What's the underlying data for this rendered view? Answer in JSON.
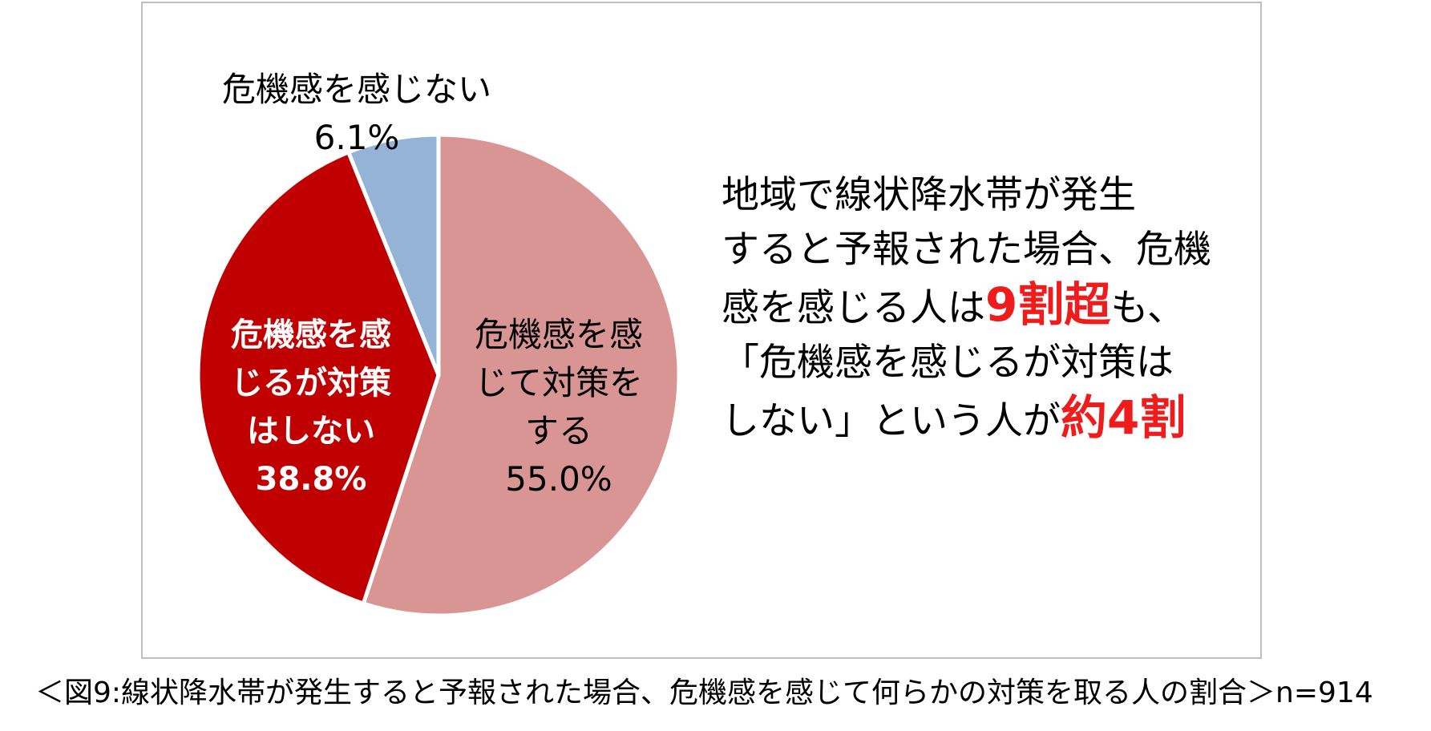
{
  "chart_data": {
    "type": "pie",
    "slices": [
      {
        "label_lines": [
          "危機感を感",
          "じて対策を",
          "する"
        ],
        "value": 55.0,
        "value_text": "55.0%",
        "color": "#d99594"
      },
      {
        "label_lines": [
          "危機感を感",
          "じるが対策",
          "はしない"
        ],
        "value": 38.8,
        "value_text": "38.8%",
        "color": "#c00000"
      },
      {
        "label_lines": [
          "危機感を感じない"
        ],
        "value": 6.1,
        "value_text": "6.1%",
        "color": "#95b3d7"
      }
    ],
    "start_direction": "top",
    "direction": "clockwise"
  },
  "callout": {
    "line1": "地域で線状降水帯が発生",
    "line2": "すると予報された場合、危機",
    "line3_pre": "感を感じる人は",
    "line3_em": "9割超",
    "line3_post": "も、",
    "line4": "「危機感を感じるが対策は",
    "line5_pre": "しない」という人が",
    "line5_em": "約4割"
  },
  "caption": "＜図9:線状降水帯が発生すると予報された場合、危機感を感じて何らかの対策を取る人の割合＞n=914"
}
